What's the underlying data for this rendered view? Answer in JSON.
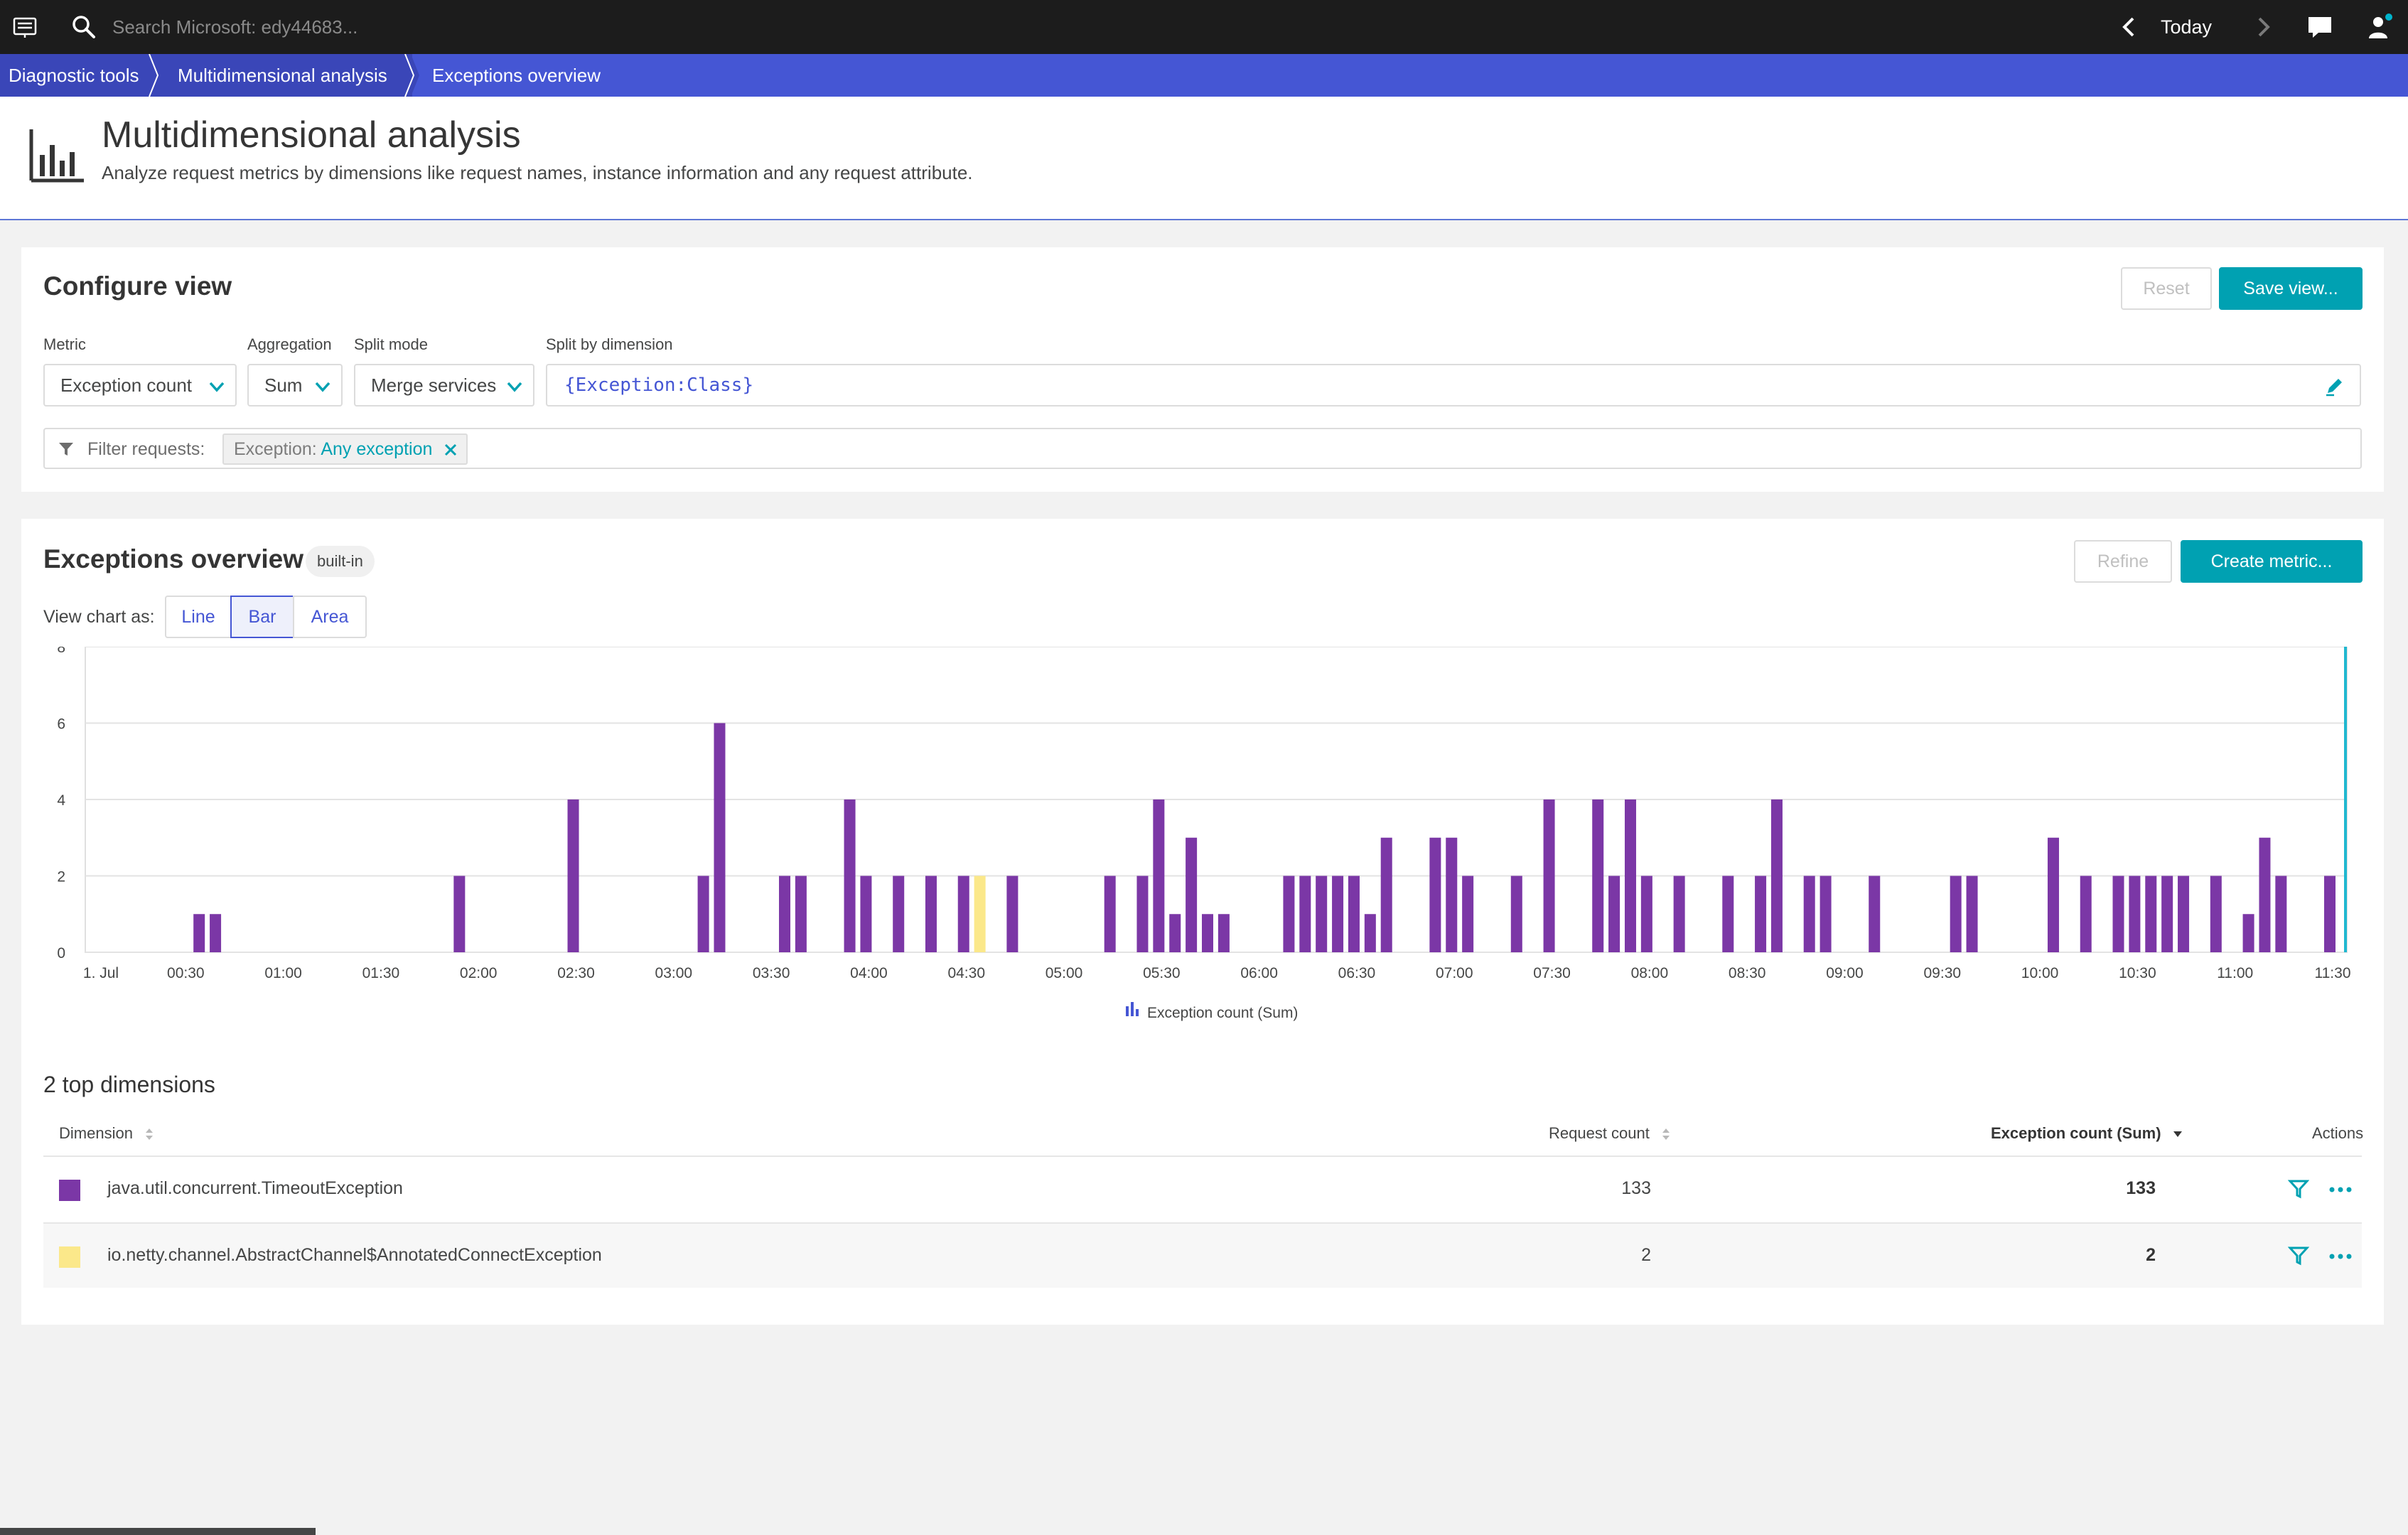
{
  "topbar": {
    "search_placeholder": "Search Microsoft: edy44683...",
    "timeframe": "Today"
  },
  "breadcrumb": [
    "Diagnostic tools",
    "Multidimensional analysis",
    "Exceptions overview"
  ],
  "header": {
    "title": "Multidimensional analysis",
    "subtitle": "Analyze request metrics by dimensions like request names, instance information and any request attribute."
  },
  "config": {
    "title": "Configure view",
    "reset_label": "Reset",
    "save_label": "Save view...",
    "metric_label": "Metric",
    "metric_value": "Exception count",
    "aggregation_label": "Aggregation",
    "aggregation_value": "Sum",
    "split_mode_label": "Split mode",
    "split_mode_value": "Merge services",
    "split_dim_label": "Split by dimension",
    "split_dim_value": "{Exception:Class}",
    "filter_label": "Filter requests:",
    "filter_key": "Exception:",
    "filter_value": "Any exception"
  },
  "exceptions": {
    "title": "Exceptions overview",
    "badge": "built-in",
    "refine_label": "Refine",
    "create_label": "Create metric...",
    "view_chart_as": "View chart as:",
    "chart_types": [
      "Line",
      "Bar",
      "Area"
    ],
    "active_chart_type": "Bar"
  },
  "chart_data": {
    "type": "bar",
    "x_tick_labels": [
      "1. Jul",
      "00:30",
      "01:00",
      "01:30",
      "02:00",
      "02:30",
      "03:00",
      "03:30",
      "04:00",
      "04:30",
      "05:00",
      "05:30",
      "06:00",
      "06:30",
      "07:00",
      "07:30",
      "08:00",
      "08:30",
      "09:00",
      "09:30",
      "10:00",
      "10:30",
      "11:00",
      "11:30"
    ],
    "y_ticks": [
      0,
      2,
      4,
      6,
      8
    ],
    "ylim": [
      0,
      8
    ],
    "legend": "Exception count (Sum)",
    "colors": {
      "timeout": "#7b37a6",
      "connect": "#fbe88a"
    },
    "series": [
      {
        "name": "java.util.concurrent.TimeoutException",
        "color": "#7b37a6",
        "points": [
          {
            "x": "00:35",
            "y": 1
          },
          {
            "x": "00:40",
            "y": 1
          },
          {
            "x": "01:55",
            "y": 2
          },
          {
            "x": "02:30",
            "y": 4
          },
          {
            "x": "03:10",
            "y": 2
          },
          {
            "x": "03:15",
            "y": 6
          },
          {
            "x": "03:35",
            "y": 2
          },
          {
            "x": "03:40",
            "y": 2
          },
          {
            "x": "03:55",
            "y": 4
          },
          {
            "x": "04:00",
            "y": 2
          },
          {
            "x": "04:10",
            "y": 2
          },
          {
            "x": "04:20",
            "y": 2
          },
          {
            "x": "04:30",
            "y": 2
          },
          {
            "x": "04:45",
            "y": 2
          },
          {
            "x": "05:15",
            "y": 2
          },
          {
            "x": "05:25",
            "y": 2
          },
          {
            "x": "05:30",
            "y": 4
          },
          {
            "x": "05:35",
            "y": 1
          },
          {
            "x": "05:40",
            "y": 3
          },
          {
            "x": "05:45",
            "y": 1
          },
          {
            "x": "05:50",
            "y": 1
          },
          {
            "x": "06:10",
            "y": 2
          },
          {
            "x": "06:15",
            "y": 2
          },
          {
            "x": "06:20",
            "y": 2
          },
          {
            "x": "06:25",
            "y": 2
          },
          {
            "x": "06:30",
            "y": 2
          },
          {
            "x": "06:35",
            "y": 1
          },
          {
            "x": "06:40",
            "y": 3
          },
          {
            "x": "06:55",
            "y": 3
          },
          {
            "x": "07:00",
            "y": 3
          },
          {
            "x": "07:05",
            "y": 2
          },
          {
            "x": "07:20",
            "y": 2
          },
          {
            "x": "07:30",
            "y": 4
          },
          {
            "x": "07:45",
            "y": 4
          },
          {
            "x": "07:50",
            "y": 2
          },
          {
            "x": "07:55",
            "y": 4
          },
          {
            "x": "08:00",
            "y": 2
          },
          {
            "x": "08:10",
            "y": 2
          },
          {
            "x": "08:25",
            "y": 2
          },
          {
            "x": "08:35",
            "y": 2
          },
          {
            "x": "08:40",
            "y": 4
          },
          {
            "x": "08:50",
            "y": 2
          },
          {
            "x": "08:55",
            "y": 2
          },
          {
            "x": "09:10",
            "y": 2
          },
          {
            "x": "09:35",
            "y": 2
          },
          {
            "x": "09:40",
            "y": 2
          },
          {
            "x": "10:05",
            "y": 3
          },
          {
            "x": "10:15",
            "y": 2
          },
          {
            "x": "10:25",
            "y": 2
          },
          {
            "x": "10:30",
            "y": 2
          },
          {
            "x": "10:35",
            "y": 2
          },
          {
            "x": "10:40",
            "y": 2
          },
          {
            "x": "10:45",
            "y": 2
          },
          {
            "x": "10:55",
            "y": 2
          },
          {
            "x": "11:05",
            "y": 1
          },
          {
            "x": "11:10",
            "y": 3
          },
          {
            "x": "11:15",
            "y": 2
          },
          {
            "x": "11:30",
            "y": 2
          }
        ]
      },
      {
        "name": "io.netty.channel.AbstractChannel$AnnotatedConnectException",
        "color": "#fbe88a",
        "points": [
          {
            "x": "04:35",
            "y": 2
          }
        ]
      }
    ]
  },
  "table": {
    "heading": "2 top dimensions",
    "columns": {
      "dimension": "Dimension",
      "request_count": "Request count",
      "exception_count": "Exception count (Sum)",
      "actions": "Actions"
    },
    "rows": [
      {
        "name": "java.util.concurrent.TimeoutException",
        "request_count": "133",
        "exception_count": "133",
        "color": "#7b37a6"
      },
      {
        "name": "io.netty.channel.AbstractChannel$AnnotatedConnectException",
        "request_count": "2",
        "exception_count": "2",
        "color": "#fbe88a"
      }
    ]
  }
}
